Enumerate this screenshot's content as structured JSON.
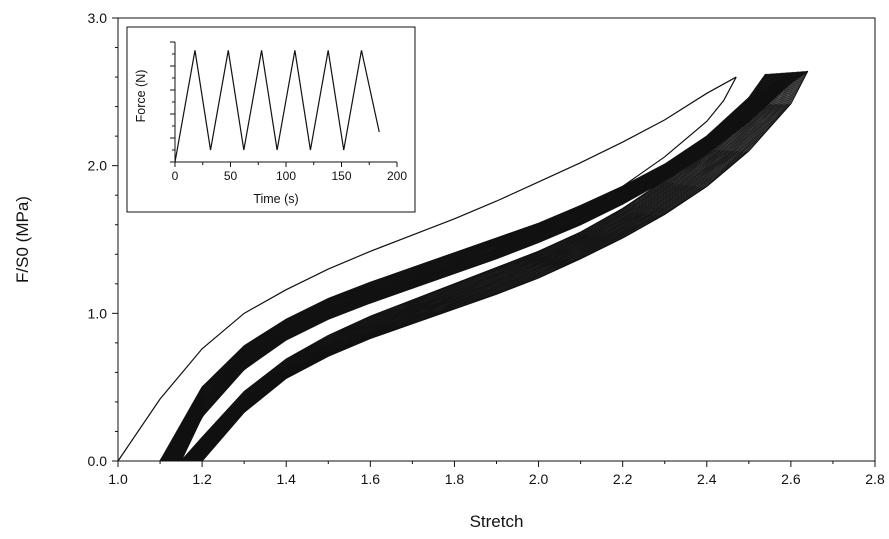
{
  "chart_data": [
    {
      "type": "line",
      "title": "",
      "xlabel": "Stretch",
      "ylabel": "F/S0 (MPa)",
      "xlim": [
        1.0,
        2.8
      ],
      "ylim": [
        0.0,
        3.0
      ],
      "x_ticks": [
        "1.0",
        "1.2",
        "1.4",
        "1.6",
        "1.8",
        "2.0",
        "2.2",
        "2.4",
        "2.6",
        "2.8"
      ],
      "y_ticks": [
        "0.0",
        "1.0",
        "2.0",
        "3.0"
      ],
      "grid": false,
      "legend": "none",
      "line_color": "#111111",
      "series": [
        {
          "x": [
            1.0,
            1.1,
            1.2,
            1.3,
            1.4,
            1.5,
            1.6,
            1.7,
            1.8,
            1.9,
            2.0,
            2.1,
            2.2,
            2.3,
            2.4,
            2.47
          ],
          "y": [
            0.0,
            0.42,
            0.76,
            1.0,
            1.16,
            1.3,
            1.42,
            1.53,
            1.64,
            1.76,
            1.89,
            2.02,
            2.16,
            2.31,
            2.49,
            2.6
          ]
        },
        {
          "x": [
            2.47,
            2.44,
            2.4,
            2.3,
            2.2,
            2.1,
            2.0,
            1.9,
            1.8,
            1.7,
            1.6,
            1.5,
            1.4,
            1.3,
            1.2,
            1.15,
            1.1
          ],
          "y": [
            2.6,
            2.44,
            2.3,
            2.06,
            1.86,
            1.69,
            1.55,
            1.43,
            1.32,
            1.22,
            1.12,
            1.0,
            0.86,
            0.66,
            0.4,
            0.22,
            0.0
          ]
        },
        {
          "x": [
            1.1,
            1.2,
            1.3,
            1.4,
            1.5,
            1.6,
            1.7,
            1.8,
            1.9,
            2.0,
            2.1,
            2.2,
            2.3,
            2.4,
            2.5,
            2.54
          ],
          "y": [
            0.0,
            0.5,
            0.78,
            0.96,
            1.1,
            1.21,
            1.31,
            1.41,
            1.51,
            1.61,
            1.73,
            1.86,
            2.01,
            2.2,
            2.46,
            2.62
          ]
        },
        {
          "x": [
            2.54,
            2.5,
            2.4,
            2.3,
            2.2,
            2.1,
            2.0,
            1.9,
            1.8,
            1.7,
            1.6,
            1.5,
            1.4,
            1.3,
            1.2,
            1.15
          ],
          "y": [
            2.62,
            2.42,
            2.12,
            1.9,
            1.71,
            1.55,
            1.42,
            1.31,
            1.2,
            1.09,
            0.98,
            0.85,
            0.69,
            0.47,
            0.16,
            0.0
          ]
        },
        {
          "x": [
            1.15,
            1.2,
            1.3,
            1.4,
            1.5,
            1.6,
            1.7,
            1.8,
            1.9,
            2.0,
            2.1,
            2.2,
            2.3,
            2.4,
            2.5,
            2.6,
            2.64
          ],
          "y": [
            0.0,
            0.3,
            0.62,
            0.82,
            0.96,
            1.07,
            1.17,
            1.27,
            1.37,
            1.48,
            1.6,
            1.74,
            1.9,
            2.08,
            2.3,
            2.56,
            2.64
          ]
        },
        {
          "x": [
            2.64,
            2.6,
            2.5,
            2.4,
            2.3,
            2.2,
            2.1,
            2.0,
            1.9,
            1.8,
            1.7,
            1.6,
            1.5,
            1.4,
            1.3,
            1.2
          ],
          "y": [
            2.64,
            2.42,
            2.1,
            1.86,
            1.67,
            1.51,
            1.37,
            1.24,
            1.13,
            1.03,
            0.93,
            0.83,
            0.71,
            0.56,
            0.33,
            0.0
          ]
        }
      ]
    },
    {
      "type": "line",
      "title": "",
      "xlabel": "Time (s)",
      "ylabel": "Force (N)",
      "xlim": [
        0,
        200
      ],
      "ylim": [
        0,
        1
      ],
      "x_ticks": [
        "0",
        "50",
        "100",
        "150",
        "200"
      ],
      "grid": false,
      "legend": "none",
      "series": [
        {
          "x": [
            0,
            18,
            32,
            48,
            62,
            78,
            92,
            108,
            122,
            138,
            152,
            168,
            184
          ],
          "y": [
            0.0,
            0.93,
            0.1,
            0.93,
            0.1,
            0.93,
            0.1,
            0.93,
            0.1,
            0.93,
            0.1,
            0.93,
            0.25
          ]
        }
      ]
    }
  ]
}
